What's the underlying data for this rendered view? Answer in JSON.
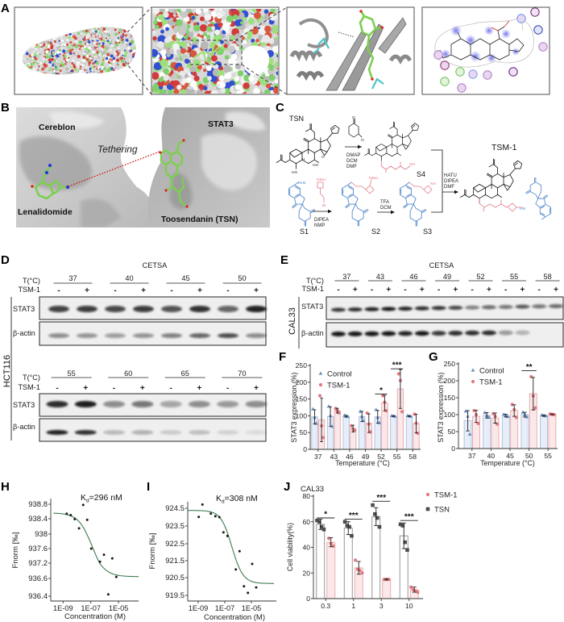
{
  "figure": {
    "panel_labels": {
      "a": "A",
      "b": "B",
      "c": "C",
      "d": "D",
      "e": "E",
      "f": "F",
      "g": "G",
      "h": "H",
      "i": "I",
      "j": "J"
    },
    "panel_B": {
      "cereblon": "Cereblon",
      "stat3": "STAT3",
      "tethering": "Tethering",
      "lenalidomide": "Lenalidomide",
      "toosendanin": "Toosendanin (TSN)"
    },
    "panel_C": {
      "compounds": {
        "tsn": "TSN",
        "s1": "S1",
        "s2": "S2",
        "s3": "S3",
        "s4": "S4",
        "tsm1": "TSM-1"
      },
      "reagents": {
        "tsn_to_s4": [
          "DMAP",
          "DCM",
          "DMF"
        ],
        "s1_to_s2": [
          "DIPEA",
          "NMP"
        ],
        "s2_to_s3": [
          "TFA",
          "DCM"
        ],
        "coupling": [
          "HATU",
          "DIPEA",
          "DMF"
        ]
      },
      "atoms": {
        "oh": "OH",
        "ho": "HO",
        "h": "H",
        "o": "O",
        "nh2": "NH2",
        "nh": "NH",
        "hn": "HN",
        "n": "N",
        "br": "Br",
        "nboc": "NBoc"
      }
    },
    "panel_D": {
      "title": "CETSA",
      "cell_line": "HCT116",
      "temp_label": "T(°C)",
      "treatment_label": "TSM-1",
      "treatment_signs": [
        "-",
        "+"
      ],
      "rows": [
        {
          "temperatures": [
            "37",
            "40",
            "45",
            "50"
          ],
          "bands": [
            "STAT3",
            "β-actin"
          ]
        },
        {
          "temperatures": [
            "55",
            "60",
            "65",
            "70"
          ],
          "bands": [
            "STAT3",
            "β-actin"
          ]
        }
      ]
    },
    "panel_E": {
      "title": "CETSA",
      "cell_line": "CAL33",
      "temp_label": "T(°C)",
      "treatment_label": "TSM-1",
      "treatment_signs": [
        "-",
        "+"
      ],
      "temperatures": [
        "37",
        "43",
        "46",
        "49",
        "52",
        "55",
        "58"
      ],
      "bands": [
        "STAT3",
        "β-actin"
      ]
    }
  },
  "western_blots": {
    "D_top": {
      "STAT3": [
        0.78,
        0.8,
        0.75,
        0.8,
        0.7,
        0.88,
        0.62,
        0.95
      ],
      "beta_actin": [
        0.45,
        0.42,
        0.38,
        0.42,
        0.5,
        0.62,
        0.72,
        0.45
      ]
    },
    "D_bottom": {
      "STAT3": [
        0.9,
        0.97,
        0.45,
        0.55,
        0.35,
        0.45,
        0.4,
        0.45
      ],
      "beta_actin": [
        0.95,
        0.88,
        0.22,
        0.25,
        0.15,
        0.2,
        0.12,
        0.08
      ]
    },
    "E": {
      "STAT3": [
        0.85,
        0.9,
        0.95,
        1.0,
        0.95,
        0.9,
        0.88,
        0.75,
        0.5,
        0.6,
        0.55,
        0.68,
        0.55,
        0.6
      ],
      "beta_actin": [
        1.0,
        1.0,
        1.0,
        1.0,
        0.95,
        1.0,
        0.85,
        0.9,
        0.9,
        0.9,
        0.4,
        0.25,
        0.0,
        0.0
      ]
    }
  },
  "chart_data": [
    {
      "panel": "F",
      "type": "bar",
      "title": "",
      "xlabel": "Temperature (°C)",
      "ylabel": "STAT3 expression (%)",
      "categories": [
        "37",
        "43",
        "46",
        "49",
        "52",
        "55",
        "58"
      ],
      "ylim": [
        0,
        250
      ],
      "yticks": [
        0,
        50,
        100,
        150,
        200,
        250
      ],
      "grid": false,
      "legend_position": "upper-left",
      "legend_order": [
        "Control",
        "TSM-1"
      ],
      "series": [
        {
          "name": "Control",
          "marker": "triangle",
          "color": "#a9bedd",
          "fill": "#e8eef7",
          "marker_color": "#6f8fc4",
          "values": [
            97,
            98,
            99,
            98,
            97,
            99,
            99
          ],
          "sd": [
            21,
            29,
            2,
            15,
            19,
            1,
            1
          ],
          "points": [
            [
              120,
              95,
              77
            ],
            [
              128,
              100,
              68
            ],
            [
              101,
              98,
              97
            ],
            [
              113,
              97,
              85
            ],
            [
              118,
              95,
              79
            ],
            [
              100,
              99,
              98
            ],
            [
              100,
              99,
              98
            ]
          ]
        },
        {
          "name": "TSM-1",
          "marker": "circle",
          "color": "#eba5aa",
          "fill": "#fbe8e9",
          "marker_color": "#e07981",
          "values": [
            88,
            115,
            62,
            78,
            138,
            180,
            77
          ],
          "sd": [
            65,
            7,
            10,
            28,
            23,
            58,
            28
          ],
          "points": [
            [
              160,
              70,
              35
            ],
            [
              122,
              115,
              109
            ],
            [
              70,
              60,
              57
            ],
            [
              108,
              75,
              52
            ],
            [
              160,
              140,
              115
            ],
            [
              225,
              205,
              112
            ],
            [
              105,
              78,
              48
            ]
          ]
        }
      ],
      "significance": [
        {
          "category": "52",
          "label": "*",
          "y": 165
        },
        {
          "category": "55",
          "label": "***",
          "y": 240
        }
      ]
    },
    {
      "panel": "G",
      "type": "bar",
      "title": "",
      "xlabel": "Temperature (°C)",
      "ylabel": "STAT3 expression (%)",
      "categories": [
        "37",
        "40",
        "45",
        "50",
        "55"
      ],
      "ylim": [
        0,
        250
      ],
      "yticks": [
        0,
        50,
        100,
        150,
        200,
        250
      ],
      "grid": false,
      "legend_position": "upper-left",
      "legend_order": [
        "Control",
        "TSM-1"
      ],
      "series": [
        {
          "name": "Control",
          "marker": "triangle",
          "color": "#a9bedd",
          "fill": "#e8eef7",
          "marker_color": "#6f8fc4",
          "values": [
            82,
            98,
            97,
            100,
            97
          ],
          "sd": [
            30,
            8,
            4,
            7,
            2
          ],
          "points": [
            [
              110,
              95,
              42
            ],
            [
              106,
              97,
              92
            ],
            [
              101,
              97,
              94
            ],
            [
              107,
              100,
              93
            ],
            [
              99,
              97,
              96
            ]
          ]
        },
        {
          "name": "TSM-1",
          "marker": "circle",
          "color": "#eba5aa",
          "fill": "#fbe8e9",
          "marker_color": "#e07981",
          "values": [
            95,
            90,
            112,
            162,
            101
          ],
          "sd": [
            18,
            15,
            17,
            48,
            1
          ],
          "points": [
            [
              112,
              100,
              74
            ],
            [
              103,
              95,
              72
            ],
            [
              130,
              115,
              92
            ],
            [
              212,
              155,
              120
            ],
            [
              102,
              101,
              100
            ]
          ]
        }
      ],
      "significance": [
        {
          "category": "50",
          "label": "**",
          "y": 230
        }
      ]
    },
    {
      "panel": "H",
      "type": "scatter",
      "subtype": "dose-response fit",
      "title": "",
      "xlabel": "Concentration (M)",
      "ylabel": "Fnorm [‰]",
      "xscale": "log",
      "xticks_log10": [
        -9,
        -7,
        -5
      ],
      "xtick_labels": [
        "1E-09",
        "1E-07",
        "1E-05"
      ],
      "yticks": [
        938.8,
        938.4,
        938.0,
        937.6,
        937.2,
        936.6,
        936.4
      ],
      "ytick_labels": [
        "938.8",
        "938.4",
        "938",
        "937.6",
        "937.2",
        "936.6",
        "936.4"
      ],
      "annotation": {
        "prefix": "K",
        "subscript": "d",
        "text": "=296 nM"
      },
      "kd_nM": 296,
      "points": {
        "log10_conc": [
          -8.74,
          -8.45,
          -8.16,
          -7.85,
          -7.55,
          -7.26,
          -6.97,
          -6.34,
          -6.05,
          -5.74,
          -5.45,
          -5.16
        ],
        "fnorm": [
          938.54,
          938.5,
          938.39,
          938.15,
          938.78,
          938.37,
          937.6,
          937.24,
          937.43,
          936.42,
          937.33,
          936.66
        ]
      },
      "fit_curve": {
        "top": 938.56,
        "bottom": 936.67,
        "log10_midpoint": -6.85,
        "hill": 0.85,
        "log10_range": [
          -9.7,
          -3.55
        ]
      }
    },
    {
      "panel": "I",
      "type": "scatter",
      "subtype": "dose-response fit",
      "title": "",
      "xlabel": "Concentration (M)",
      "ylabel": "Fnorm [‰]",
      "xscale": "log",
      "xticks_log10": [
        -9,
        -7,
        -5
      ],
      "xtick_labels": [
        "1E-09",
        "1E-07",
        "1E-05"
      ],
      "yticks": [
        924.5,
        923.5,
        922.5,
        921.5,
        920.5,
        919.5
      ],
      "ytick_labels": [
        "924.5",
        "923.5",
        "922.5",
        "921.5",
        "920.5",
        "919.5"
      ],
      "annotation": {
        "prefix": "K",
        "subscript": "d",
        "text": "=308 nM"
      },
      "kd_nM": 308,
      "points": {
        "log10_conc": [
          -8.96,
          -8.68,
          -8.05,
          -7.71,
          -7.41,
          -7.1,
          -6.8,
          -6.17,
          -5.89,
          -5.56,
          -5.26,
          -4.94,
          -4.64
        ],
        "fnorm": [
          924.01,
          924.71,
          924.2,
          924.05,
          924.0,
          923.14,
          922.94,
          920.98,
          922.06,
          920.01,
          919.64,
          921.31,
          919.95
        ]
      },
      "fit_curve": {
        "top": 924.38,
        "bottom": 920.17,
        "log10_midpoint": -6.45,
        "hill": 1.05,
        "log10_range": [
          -9.75,
          -3.3
        ]
      }
    },
    {
      "panel": "J",
      "type": "bar",
      "title": "CAL33",
      "xlabel": "",
      "ylabel": "Cell viability(%)",
      "categories": [
        "0.3",
        "1",
        "3",
        "10"
      ],
      "ylim": [
        0,
        80
      ],
      "yticks": [
        0,
        20,
        40,
        60,
        80
      ],
      "grid": false,
      "legend_position": "right",
      "legend_order": [
        "TSM-1",
        "TSN"
      ],
      "series": [
        {
          "name": "TSN",
          "marker": "square",
          "color": "#8c8c8c",
          "fill": "#ffffff",
          "marker_color": "#4d4d4d",
          "values": [
            58,
            55,
            64,
            49
          ],
          "sd": [
            4,
            5,
            7,
            10
          ],
          "points": [
            [
              61,
              60,
              56,
              54
            ],
            [
              60,
              57,
              56,
              49
            ],
            [
              73,
              66,
              63,
              56
            ],
            [
              58,
              57,
              44,
              38
            ]
          ]
        },
        {
          "name": "TSM-1",
          "marker": "circle",
          "color": "#eba5aa",
          "fill": "#fbe8e9",
          "marker_color": "#e07981",
          "values": [
            44,
            24,
            15,
            7
          ],
          "sd": [
            3.5,
            5,
            0.5,
            2
          ],
          "points": [
            [
              47,
              43,
              41
            ],
            [
              30,
              23,
              22,
              20
            ],
            [
              15,
              15,
              15
            ],
            [
              9,
              7,
              6,
              5
            ]
          ]
        }
      ],
      "significance": [
        {
          "category": "0.3",
          "label": "*",
          "y": 63
        },
        {
          "category": "1",
          "label": "***",
          "y": 62
        },
        {
          "category": "3",
          "label": "***",
          "y": 76
        },
        {
          "category": "10",
          "label": "***",
          "y": 61
        }
      ]
    }
  ]
}
